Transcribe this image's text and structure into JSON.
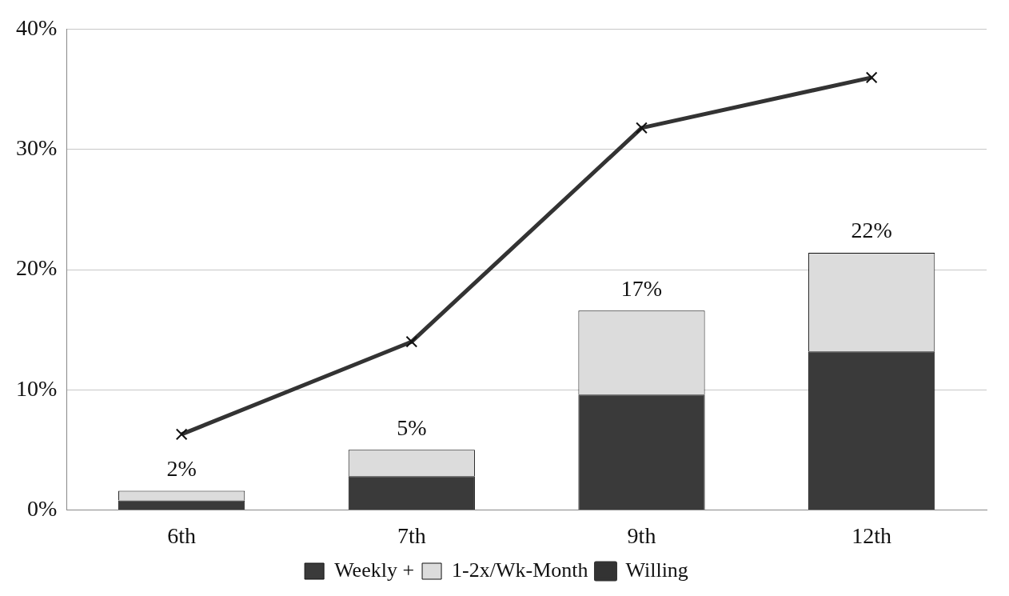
{
  "chart_data": {
    "type": "bar",
    "stacked": true,
    "categories": [
      "6th",
      "7th",
      "9th",
      "12th"
    ],
    "series": [
      {
        "name": "Weekly +",
        "color": "#3a3a3a",
        "values": [
          0.8,
          2.8,
          9.6,
          13.2
        ]
      },
      {
        "name": "1-2x/Wk-Month",
        "color": "#dcdcdc",
        "values": [
          0.8,
          2.2,
          7.0,
          8.2
        ]
      },
      {
        "name": "Willing",
        "type": "line",
        "color": "#333333",
        "marker": "cross",
        "values": [
          6.3,
          14.0,
          31.8,
          36.0
        ]
      }
    ],
    "totals": [
      "2%",
      "5%",
      "17%",
      "22%"
    ],
    "ylim": [
      0,
      40
    ],
    "yticks": [
      {
        "value": 0,
        "label": "0%"
      },
      {
        "value": 10,
        "label": "10%"
      },
      {
        "value": 20,
        "label": "20%"
      },
      {
        "value": 30,
        "label": "30%"
      },
      {
        "value": 40,
        "label": "40%"
      }
    ],
    "grid": "y",
    "legend": "bottom"
  }
}
